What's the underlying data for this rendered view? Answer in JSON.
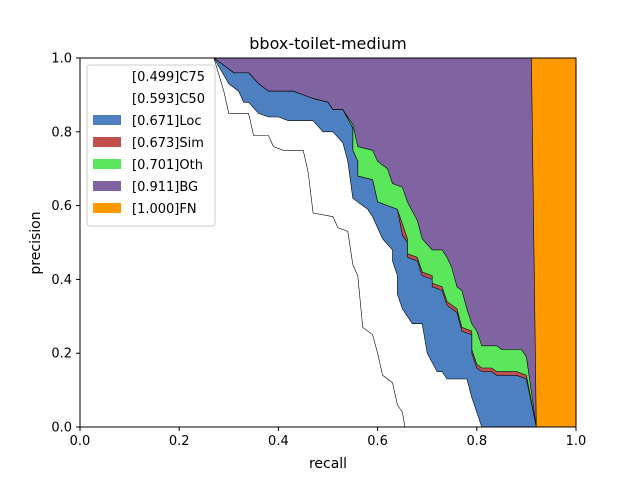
{
  "chart_data": {
    "type": "area",
    "title": "bbox-toilet-medium",
    "xlabel": "recall",
    "ylabel": "precision",
    "xlim": [
      0,
      1
    ],
    "ylim": [
      0,
      1
    ],
    "x_ticks": [
      "0.0",
      "0.2",
      "0.4",
      "0.6",
      "0.8",
      "1.0"
    ],
    "y_ticks": [
      "0.0",
      "0.2",
      "0.4",
      "0.6",
      "0.8",
      "1.0"
    ],
    "grid": false,
    "legend_position": "top-left",
    "series": [
      {
        "name": "[0.499]C75",
        "color": "#ffffff",
        "points": [
          [
            0,
            1
          ],
          [
            0.27,
            1
          ],
          [
            0.29,
            0.91
          ],
          [
            0.3,
            0.85
          ],
          [
            0.34,
            0.85
          ],
          [
            0.35,
            0.79
          ],
          [
            0.38,
            0.79
          ],
          [
            0.39,
            0.76
          ],
          [
            0.41,
            0.75
          ],
          [
            0.45,
            0.75
          ],
          [
            0.46,
            0.69
          ],
          [
            0.47,
            0.58
          ],
          [
            0.51,
            0.57
          ],
          [
            0.52,
            0.54
          ],
          [
            0.54,
            0.53
          ],
          [
            0.55,
            0.44
          ],
          [
            0.56,
            0.41
          ],
          [
            0.57,
            0.27
          ],
          [
            0.59,
            0.25
          ],
          [
            0.6,
            0.2
          ],
          [
            0.61,
            0.14
          ],
          [
            0.63,
            0.12
          ],
          [
            0.64,
            0.06
          ],
          [
            0.65,
            0.04
          ],
          [
            0.655,
            0
          ]
        ]
      },
      {
        "name": "[0.593]C50",
        "color": "#ffffff",
        "points": [
          [
            0,
            1
          ],
          [
            0.27,
            1
          ],
          [
            0.3,
            0.93
          ],
          [
            0.32,
            0.91
          ],
          [
            0.33,
            0.88
          ],
          [
            0.34,
            0.88
          ],
          [
            0.36,
            0.85
          ],
          [
            0.38,
            0.84
          ],
          [
            0.4,
            0.84
          ],
          [
            0.42,
            0.83
          ],
          [
            0.47,
            0.83
          ],
          [
            0.49,
            0.8
          ],
          [
            0.51,
            0.8
          ],
          [
            0.53,
            0.77
          ],
          [
            0.54,
            0.72
          ],
          [
            0.55,
            0.62
          ],
          [
            0.57,
            0.6
          ],
          [
            0.58,
            0.59
          ],
          [
            0.59,
            0.57
          ],
          [
            0.61,
            0.51
          ],
          [
            0.63,
            0.48
          ],
          [
            0.63,
            0.45
          ],
          [
            0.64,
            0.41
          ],
          [
            0.64,
            0.36
          ],
          [
            0.65,
            0.32
          ],
          [
            0.66,
            0.3
          ],
          [
            0.67,
            0.28
          ],
          [
            0.69,
            0.28
          ],
          [
            0.7,
            0.2
          ],
          [
            0.72,
            0.15
          ],
          [
            0.73,
            0.15
          ],
          [
            0.74,
            0.13
          ],
          [
            0.78,
            0.13
          ],
          [
            0.79,
            0.08
          ],
          [
            0.8,
            0.04
          ],
          [
            0.81,
            0
          ]
        ]
      },
      {
        "name": "[0.671]Loc",
        "color": "#4c80c0",
        "points": [
          [
            0,
            1
          ],
          [
            0.27,
            1
          ],
          [
            0.29,
            0.98
          ],
          [
            0.31,
            0.96
          ],
          [
            0.34,
            0.96
          ],
          [
            0.36,
            0.93
          ],
          [
            0.38,
            0.91
          ],
          [
            0.43,
            0.91
          ],
          [
            0.47,
            0.89
          ],
          [
            0.5,
            0.88
          ],
          [
            0.51,
            0.86
          ],
          [
            0.53,
            0.86
          ],
          [
            0.55,
            0.81
          ],
          [
            0.55,
            0.75
          ],
          [
            0.56,
            0.72
          ],
          [
            0.56,
            0.68
          ],
          [
            0.59,
            0.67
          ],
          [
            0.6,
            0.61
          ],
          [
            0.64,
            0.59
          ],
          [
            0.65,
            0.52
          ],
          [
            0.66,
            0.5
          ],
          [
            0.66,
            0.46
          ],
          [
            0.68,
            0.45
          ],
          [
            0.69,
            0.41
          ],
          [
            0.71,
            0.4
          ],
          [
            0.71,
            0.38
          ],
          [
            0.73,
            0.37
          ],
          [
            0.74,
            0.33
          ],
          [
            0.76,
            0.31
          ],
          [
            0.77,
            0.26
          ],
          [
            0.79,
            0.25
          ],
          [
            0.79,
            0.2
          ],
          [
            0.8,
            0.16
          ],
          [
            0.81,
            0.15
          ],
          [
            0.83,
            0.15
          ],
          [
            0.84,
            0.14
          ],
          [
            0.88,
            0.14
          ],
          [
            0.9,
            0.13
          ],
          [
            0.92,
            0
          ]
        ]
      },
      {
        "name": "[0.673]Sim",
        "color": "#c0504d",
        "points": [
          [
            0,
            1
          ],
          [
            0.27,
            1
          ],
          [
            0.29,
            0.98
          ],
          [
            0.31,
            0.96
          ],
          [
            0.34,
            0.96
          ],
          [
            0.36,
            0.93
          ],
          [
            0.38,
            0.91
          ],
          [
            0.43,
            0.91
          ],
          [
            0.47,
            0.89
          ],
          [
            0.5,
            0.88
          ],
          [
            0.51,
            0.86
          ],
          [
            0.53,
            0.86
          ],
          [
            0.55,
            0.81
          ],
          [
            0.55,
            0.75
          ],
          [
            0.56,
            0.72
          ],
          [
            0.56,
            0.68
          ],
          [
            0.59,
            0.67
          ],
          [
            0.6,
            0.61
          ],
          [
            0.64,
            0.59
          ],
          [
            0.66,
            0.51
          ],
          [
            0.66,
            0.47
          ],
          [
            0.68,
            0.46
          ],
          [
            0.69,
            0.42
          ],
          [
            0.71,
            0.41
          ],
          [
            0.71,
            0.39
          ],
          [
            0.73,
            0.38
          ],
          [
            0.74,
            0.34
          ],
          [
            0.76,
            0.32
          ],
          [
            0.77,
            0.27
          ],
          [
            0.79,
            0.26
          ],
          [
            0.79,
            0.21
          ],
          [
            0.8,
            0.17
          ],
          [
            0.81,
            0.16
          ],
          [
            0.83,
            0.16
          ],
          [
            0.84,
            0.15
          ],
          [
            0.88,
            0.15
          ],
          [
            0.9,
            0.14
          ],
          [
            0.92,
            0
          ]
        ]
      },
      {
        "name": "[0.701]Oth",
        "color": "#5ce65c",
        "points": [
          [
            0,
            1
          ],
          [
            0.27,
            1
          ],
          [
            0.29,
            0.98
          ],
          [
            0.31,
            0.96
          ],
          [
            0.34,
            0.96
          ],
          [
            0.36,
            0.93
          ],
          [
            0.38,
            0.91
          ],
          [
            0.43,
            0.91
          ],
          [
            0.47,
            0.89
          ],
          [
            0.5,
            0.88
          ],
          [
            0.51,
            0.86
          ],
          [
            0.53,
            0.86
          ],
          [
            0.55,
            0.82
          ],
          [
            0.56,
            0.76
          ],
          [
            0.59,
            0.75
          ],
          [
            0.6,
            0.72
          ],
          [
            0.62,
            0.7
          ],
          [
            0.63,
            0.66
          ],
          [
            0.65,
            0.65
          ],
          [
            0.66,
            0.61
          ],
          [
            0.68,
            0.56
          ],
          [
            0.69,
            0.51
          ],
          [
            0.71,
            0.48
          ],
          [
            0.73,
            0.48
          ],
          [
            0.74,
            0.46
          ],
          [
            0.75,
            0.43
          ],
          [
            0.76,
            0.38
          ],
          [
            0.77,
            0.37
          ],
          [
            0.78,
            0.32
          ],
          [
            0.79,
            0.28
          ],
          [
            0.8,
            0.26
          ],
          [
            0.81,
            0.22
          ],
          [
            0.84,
            0.22
          ],
          [
            0.85,
            0.21
          ],
          [
            0.89,
            0.21
          ],
          [
            0.9,
            0.19
          ],
          [
            0.92,
            0
          ]
        ]
      },
      {
        "name": "[0.911]BG",
        "color": "#8064a2",
        "points": [
          [
            0,
            1
          ],
          [
            0.91,
            1
          ],
          [
            0.92,
            0
          ]
        ]
      },
      {
        "name": "[1.000]FN",
        "color": "#ff9900",
        "points": [
          [
            0,
            1
          ],
          [
            1,
            1
          ],
          [
            1,
            0
          ]
        ]
      }
    ]
  }
}
